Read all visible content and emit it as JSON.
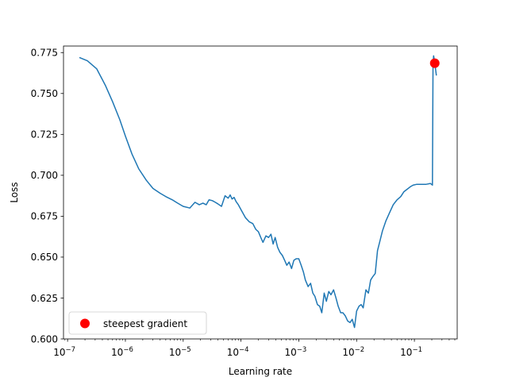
{
  "chart_data": {
    "type": "line",
    "title": "",
    "xlabel": "Learning rate",
    "ylabel": "Loss",
    "xscale": "log",
    "xlim": [
      8.5e-08,
      0.55
    ],
    "ylim": [
      0.6,
      0.779
    ],
    "grid": false,
    "legend_position": "lower-left",
    "x_ticks": [
      {
        "value": 1e-07,
        "base": "10",
        "exp": "−7"
      },
      {
        "value": 1e-06,
        "base": "10",
        "exp": "−6"
      },
      {
        "value": 1e-05,
        "base": "10",
        "exp": "−5"
      },
      {
        "value": 0.0001,
        "base": "10",
        "exp": "−4"
      },
      {
        "value": 0.001,
        "base": "10",
        "exp": "−3"
      },
      {
        "value": 0.01,
        "base": "10",
        "exp": "−2"
      },
      {
        "value": 0.1,
        "base": "10",
        "exp": "−1"
      }
    ],
    "y_ticks": [
      {
        "value": 0.6,
        "label": "0.600"
      },
      {
        "value": 0.625,
        "label": "0.625"
      },
      {
        "value": 0.65,
        "label": "0.650"
      },
      {
        "value": 0.675,
        "label": "0.675"
      },
      {
        "value": 0.7,
        "label": "0.700"
      },
      {
        "value": 0.725,
        "label": "0.725"
      },
      {
        "value": 0.75,
        "label": "0.750"
      },
      {
        "value": 0.775,
        "label": "0.775"
      }
    ],
    "series": [
      {
        "color": "#1f77b4",
        "x": [
          1.6e-07,
          2.2e-07,
          3.2e-07,
          4.5e-07,
          6e-07,
          8e-07,
          1e-06,
          1.3e-06,
          1.7e-06,
          2.3e-06,
          3e-06,
          4e-06,
          5e-06,
          6.5e-06,
          8e-06,
          1e-05,
          1.3e-05,
          1.6e-05,
          1.9e-05,
          2.2e-05,
          2.5e-05,
          2.8e-05,
          3.2e-05,
          3.6e-05,
          4e-05,
          4.6e-05,
          5.3e-05,
          6e-05,
          6.5e-05,
          7e-05,
          7.6e-05,
          8.2e-05,
          9e-05,
          0.0001,
          0.00012,
          0.00014,
          0.00016,
          0.00018,
          0.0002,
          0.00022,
          0.00024,
          0.00027,
          0.0003,
          0.00033,
          0.00036,
          0.00039,
          0.00043,
          0.00047,
          0.00052,
          0.00057,
          0.00062,
          0.00068,
          0.00075,
          0.00082,
          0.0009,
          0.001,
          0.0011,
          0.0012,
          0.0013,
          0.00145,
          0.0016,
          0.00175,
          0.0019,
          0.0021,
          0.0023,
          0.0025,
          0.00275,
          0.003,
          0.0033,
          0.0036,
          0.004,
          0.0044,
          0.0048,
          0.0053,
          0.0058,
          0.0064,
          0.007,
          0.0077,
          0.0084,
          0.0092,
          0.01,
          0.011,
          0.012,
          0.013,
          0.0145,
          0.016,
          0.0175,
          0.019,
          0.021,
          0.023,
          0.025,
          0.028,
          0.032,
          0.037,
          0.043,
          0.05,
          0.058,
          0.066,
          0.075,
          0.085,
          0.095,
          0.11,
          0.13,
          0.16,
          0.19,
          0.205,
          0.21,
          0.215,
          0.22,
          0.23,
          0.24
        ],
        "y": [
          0.772,
          0.77,
          0.765,
          0.755,
          0.745,
          0.734,
          0.724,
          0.713,
          0.704,
          0.697,
          0.692,
          0.689,
          0.687,
          0.685,
          0.683,
          0.681,
          0.68,
          0.6835,
          0.682,
          0.683,
          0.682,
          0.685,
          0.6845,
          0.6835,
          0.6825,
          0.681,
          0.6875,
          0.686,
          0.688,
          0.6855,
          0.6865,
          0.684,
          0.682,
          0.679,
          0.674,
          0.6715,
          0.6705,
          0.667,
          0.6655,
          0.662,
          0.659,
          0.663,
          0.662,
          0.664,
          0.658,
          0.662,
          0.656,
          0.653,
          0.651,
          0.648,
          0.645,
          0.647,
          0.643,
          0.648,
          0.649,
          0.649,
          0.645,
          0.641,
          0.636,
          0.632,
          0.634,
          0.628,
          0.626,
          0.621,
          0.62,
          0.616,
          0.628,
          0.623,
          0.629,
          0.627,
          0.63,
          0.625,
          0.62,
          0.616,
          0.616,
          0.614,
          0.611,
          0.61,
          0.612,
          0.607,
          0.617,
          0.62,
          0.621,
          0.619,
          0.63,
          0.628,
          0.636,
          0.638,
          0.64,
          0.654,
          0.659,
          0.666,
          0.672,
          0.677,
          0.682,
          0.685,
          0.687,
          0.69,
          0.6915,
          0.693,
          0.694,
          0.6945,
          0.6945,
          0.6945,
          0.695,
          0.694,
          0.768,
          0.773,
          0.771,
          0.766,
          0.761
        ]
      }
    ],
    "highlight": {
      "label": "steepest gradient",
      "x": 0.225,
      "y": 0.7685,
      "color": "#ff0000"
    }
  }
}
